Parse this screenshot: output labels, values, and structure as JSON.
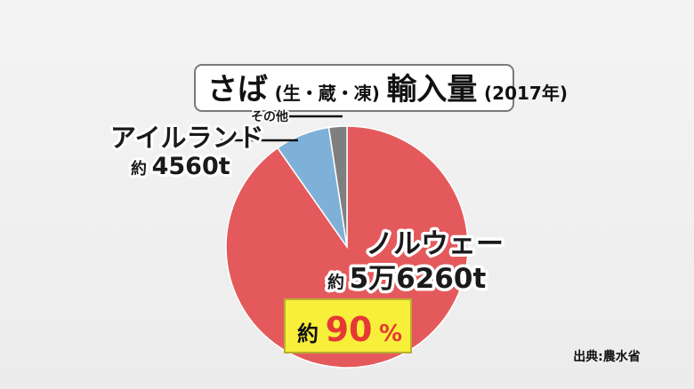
{
  "title": {
    "main_a": "さば",
    "paren": "(生・蔵・凍)",
    "main_b": "輸入量",
    "year": "(2017年)"
  },
  "source": "出典:農水省",
  "colors": {
    "norway": "#e45a5c",
    "ireland": "#7fb0d8",
    "other": "#7f7f7f",
    "highlight": "#f8ef3a"
  },
  "chart_data": {
    "type": "pie",
    "title": "さば(生・蔵・凍)輸入量(2017年)",
    "slices": [
      {
        "name": "ノルウェー",
        "value": 56260,
        "label": "約5万6260t",
        "percent_label": "約90%"
      },
      {
        "name": "アイルランド",
        "value": 4560,
        "label": "約4560t"
      },
      {
        "name": "その他",
        "value": 1500,
        "label": ""
      }
    ]
  },
  "labels": {
    "norway_name": "ノルウェー",
    "norway_prefix": "約",
    "norway_value": "5万6260t",
    "ireland_name": "アイルランド",
    "ireland_prefix": "約",
    "ireland_value": "4560t",
    "other_name": "その他",
    "pct_prefix": "約",
    "pct_number": "90",
    "pct_sign": "%"
  }
}
